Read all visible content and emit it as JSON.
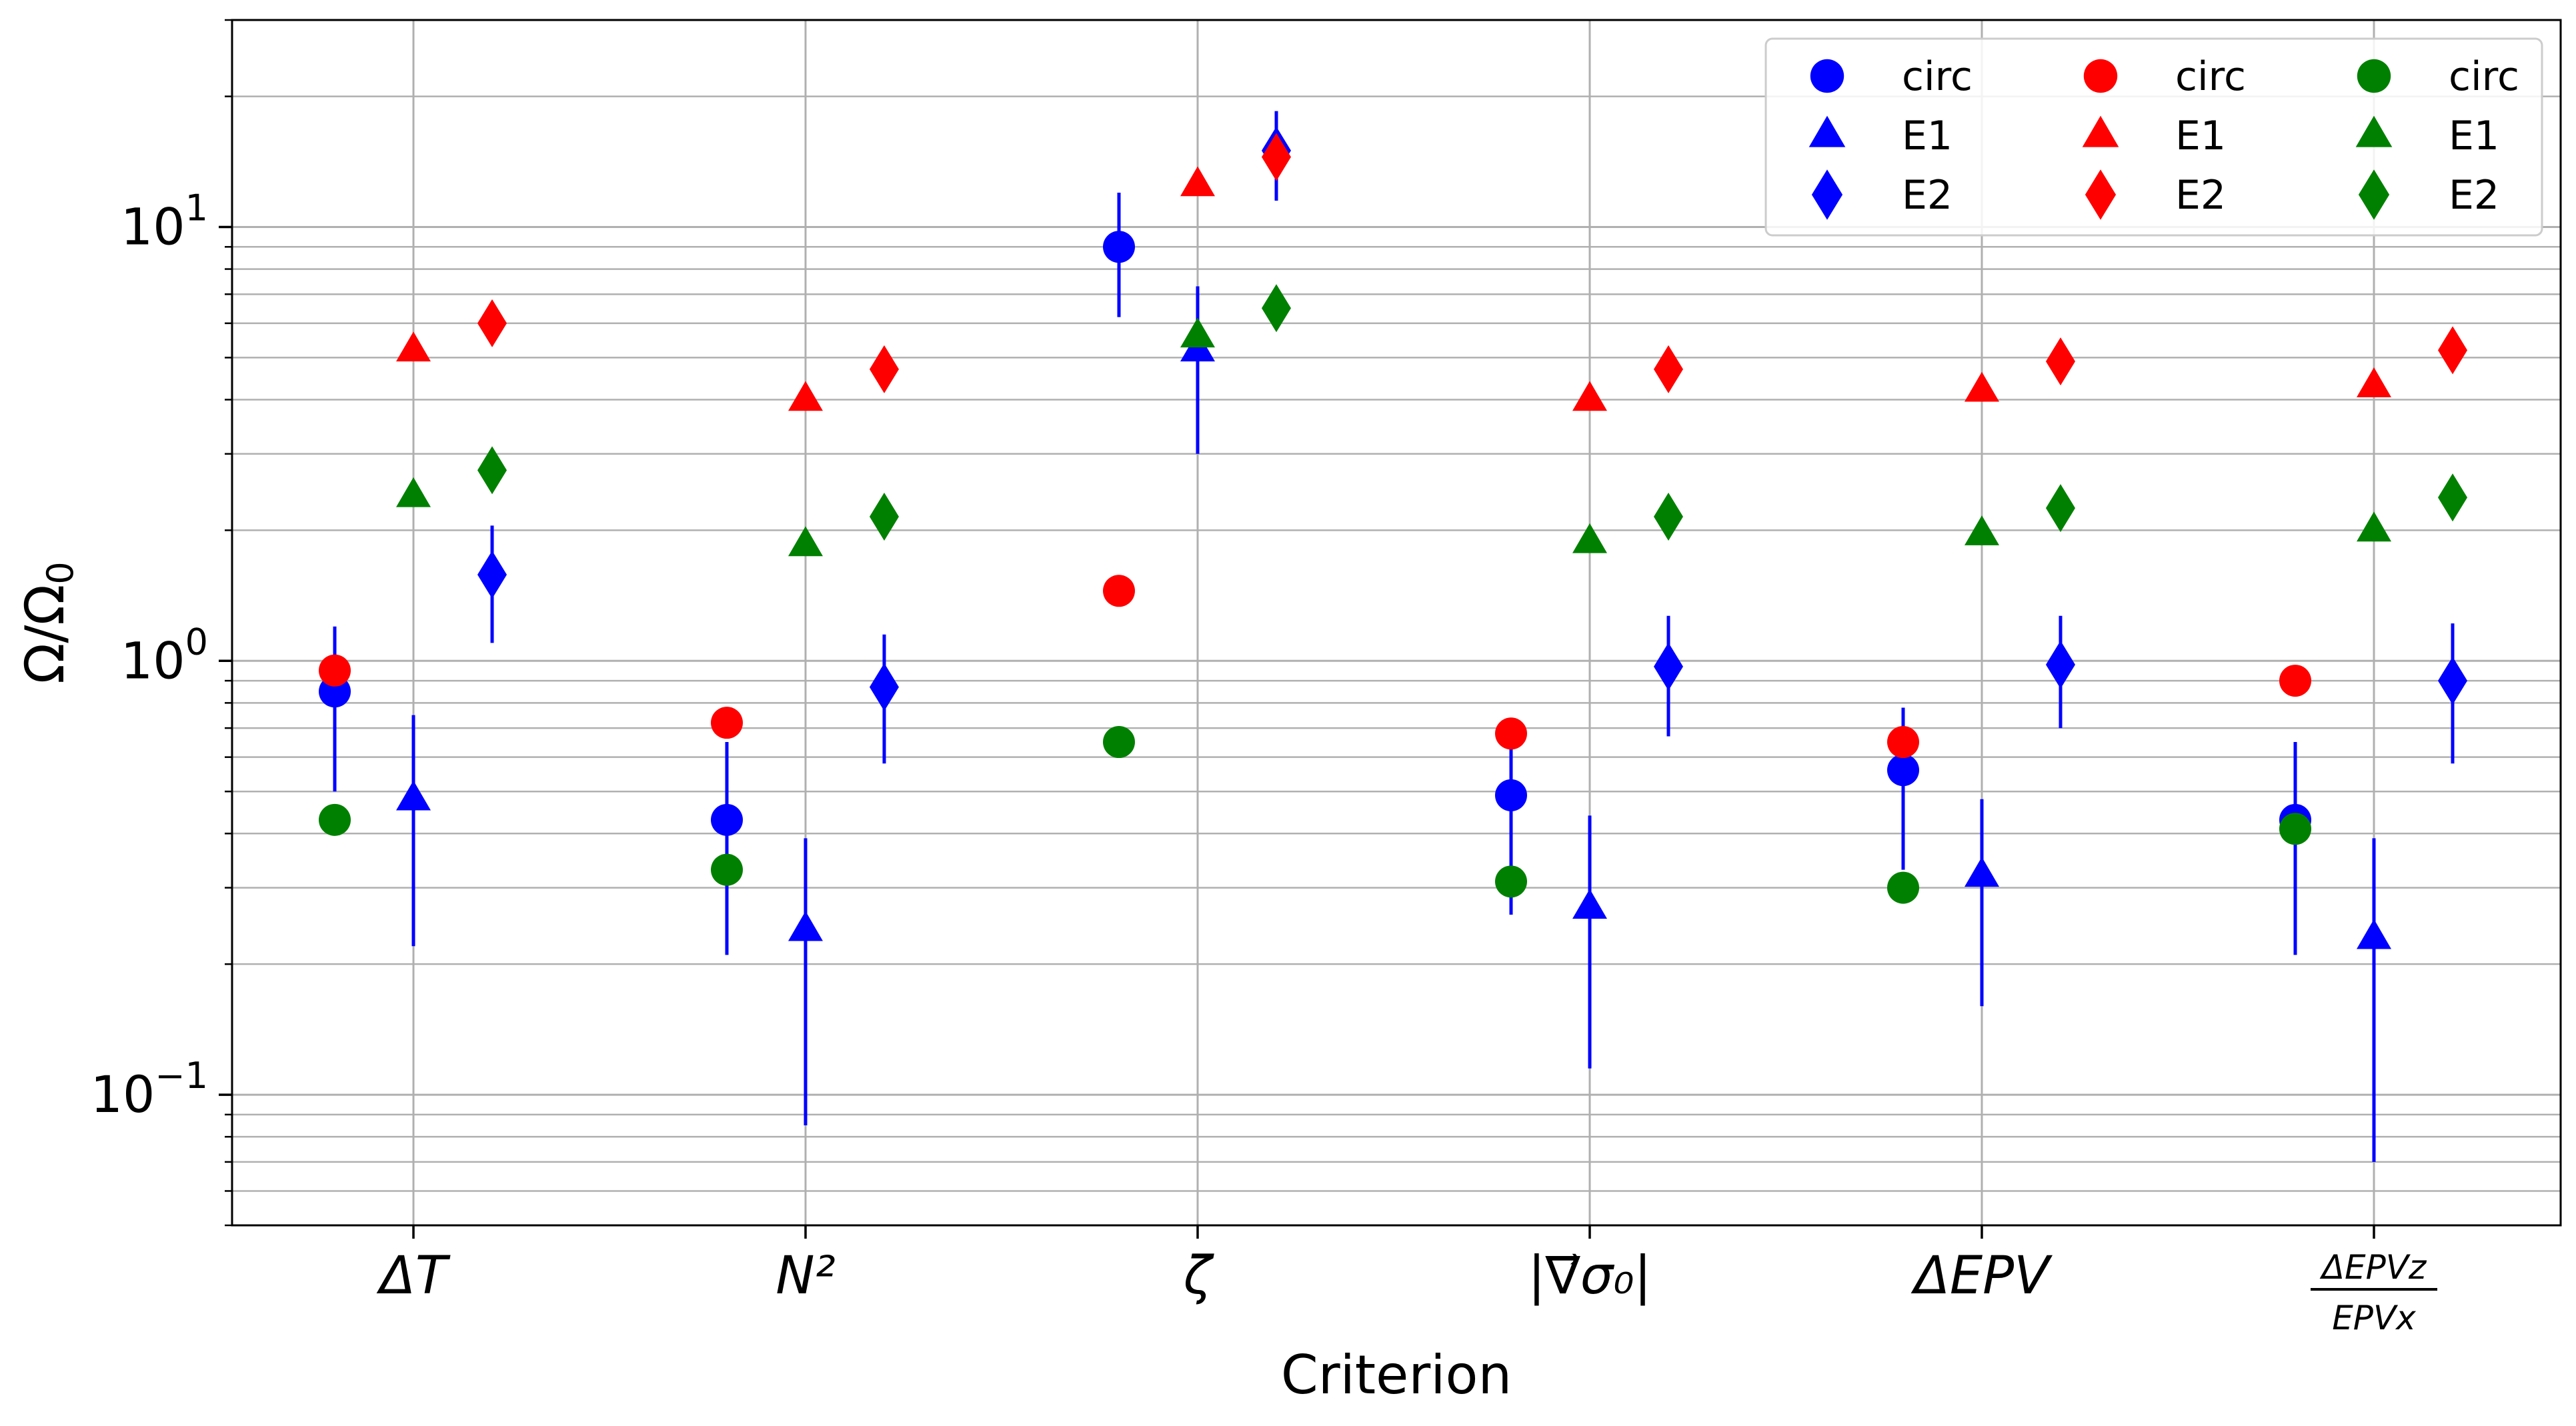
{
  "chart_data": {
    "type": "scatter",
    "y_scale": "log",
    "ylim": [
      0.05,
      30
    ],
    "grid": true,
    "legend_position": "top-right",
    "xlabel": "Criterion",
    "ylabel": "Ω/Ω",
    "ylabel_subscript": "0",
    "y_ticks": [
      {
        "base": "10",
        "exp": "−1"
      },
      {
        "base": "10",
        "exp": "0"
      },
      {
        "base": "10",
        "exp": "1"
      }
    ],
    "categories": [
      {
        "text": "ΔT"
      },
      {
        "text": "N²"
      },
      {
        "text": "ζ"
      },
      {
        "text": "|∇⃗σ₀|"
      },
      {
        "text": "ΔEPV"
      },
      {
        "num": "ΔEPVz",
        "den": "EPVx"
      }
    ],
    "legend": {
      "columns": [
        {
          "color": "#0000ff",
          "labels": [
            "circ",
            "E1",
            "E2"
          ]
        },
        {
          "color": "#ff0000",
          "labels": [
            "circ",
            "E1",
            "E2"
          ]
        },
        {
          "color": "#008000",
          "labels": [
            "circ",
            "E1",
            "E2"
          ]
        }
      ]
    },
    "series": [
      {
        "label": "circ",
        "color": "#0000ff",
        "marker": "circle",
        "offset": -1,
        "values": [
          0.85,
          0.43,
          9.0,
          0.49,
          0.56,
          0.43
        ],
        "err_low": [
          0.5,
          0.21,
          6.2,
          0.26,
          0.33,
          0.21
        ],
        "err_high": [
          1.2,
          0.65,
          12.0,
          0.7,
          0.78,
          0.65
        ]
      },
      {
        "label": "E1",
        "color": "#0000ff",
        "marker": "triangle",
        "offset": 0,
        "values": [
          0.48,
          0.24,
          5.2,
          0.27,
          0.32,
          0.23
        ],
        "err_low": [
          0.22,
          0.085,
          3.0,
          0.115,
          0.16,
          0.07
        ],
        "err_high": [
          0.75,
          0.39,
          7.3,
          0.44,
          0.48,
          0.39
        ]
      },
      {
        "label": "E2",
        "color": "#0000ff",
        "marker": "diamond",
        "offset": 1,
        "values": [
          1.58,
          0.87,
          15.0,
          0.97,
          0.98,
          0.9
        ],
        "err_low": [
          1.1,
          0.58,
          11.5,
          0.67,
          0.7,
          0.58
        ],
        "err_high": [
          2.05,
          1.15,
          18.5,
          1.27,
          1.27,
          1.22
        ]
      },
      {
        "label": "circ",
        "color": "#ff0000",
        "marker": "circle",
        "offset": -1,
        "values": [
          0.95,
          0.72,
          1.45,
          0.68,
          0.65,
          0.9
        ]
      },
      {
        "label": "E1",
        "color": "#ff0000",
        "marker": "triangle",
        "offset": 0,
        "values": [
          5.2,
          4.0,
          12.5,
          4.0,
          4.2,
          4.3
        ]
      },
      {
        "label": "E2",
        "color": "#ff0000",
        "marker": "diamond",
        "offset": 1,
        "values": [
          6.0,
          4.7,
          14.5,
          4.7,
          4.9,
          5.2
        ]
      },
      {
        "label": "circ",
        "color": "#008000",
        "marker": "circle",
        "offset": -1,
        "values": [
          0.43,
          0.33,
          0.65,
          0.31,
          0.3,
          0.41
        ]
      },
      {
        "label": "E1",
        "color": "#008000",
        "marker": "triangle",
        "offset": 0,
        "values": [
          2.4,
          1.85,
          5.6,
          1.88,
          1.96,
          2.0
        ]
      },
      {
        "label": "E2",
        "color": "#008000",
        "marker": "diamond",
        "offset": 1,
        "values": [
          2.75,
          2.15,
          6.5,
          2.15,
          2.25,
          2.38
        ]
      }
    ]
  }
}
